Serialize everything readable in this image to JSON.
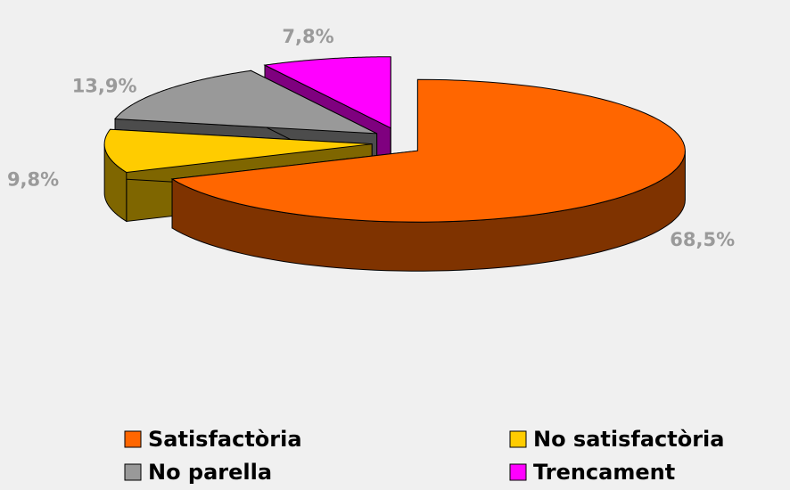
{
  "chart_data": {
    "type": "pie",
    "categories": [
      "Satisfactòria",
      "No satisfactòria",
      "No parella",
      "Trencament"
    ],
    "values": [
      68.5,
      9.8,
      13.9,
      7.8
    ],
    "value_labels": [
      "68,5%",
      "9,8%",
      "13,9%",
      "7,8%"
    ],
    "colors": [
      "#ff6600",
      "#ffcc00",
      "#999999",
      "#ff00ff"
    ],
    "legend": "bottom"
  }
}
